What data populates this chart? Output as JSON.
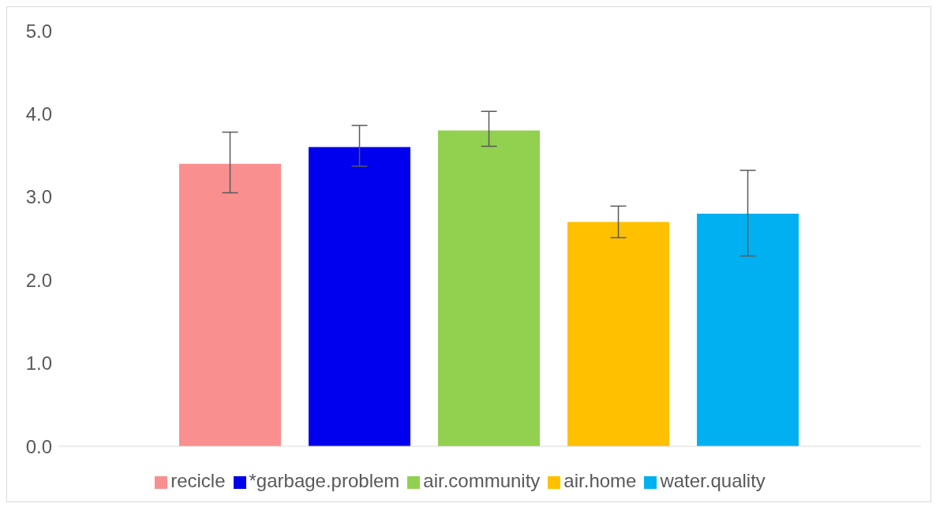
{
  "chart_data": {
    "type": "bar",
    "categories": [
      null
    ],
    "series": [
      {
        "name": "recicle",
        "color": "#f98f8f",
        "values": [
          3.4
        ],
        "errors": [
          [
            3.05,
            3.78
          ]
        ]
      },
      {
        "name": "*garbage.problem",
        "color": "#0000ee",
        "values": [
          3.6
        ],
        "errors": [
          [
            3.37,
            3.86
          ]
        ]
      },
      {
        "name": "air.community",
        "color": "#92d050",
        "values": [
          3.8
        ],
        "errors": [
          [
            3.61,
            4.03
          ]
        ]
      },
      {
        "name": "air.home",
        "color": "#ffc000",
        "values": [
          2.7
        ],
        "errors": [
          [
            2.51,
            2.89
          ]
        ]
      },
      {
        "name": "water.quality",
        "color": "#00b0f0",
        "values": [
          2.8
        ],
        "errors": [
          [
            2.29,
            3.32
          ]
        ]
      }
    ],
    "ylim": [
      0,
      5
    ],
    "yticks": [
      {
        "value": 0,
        "label": "0.0"
      },
      {
        "value": 1,
        "label": "1.0"
      },
      {
        "value": 2,
        "label": "2.0"
      },
      {
        "value": 3,
        "label": "3.0"
      },
      {
        "value": 4,
        "label": "4.0"
      },
      {
        "value": 5,
        "label": "5.0"
      }
    ],
    "grid": false,
    "legend": "bottom"
  }
}
